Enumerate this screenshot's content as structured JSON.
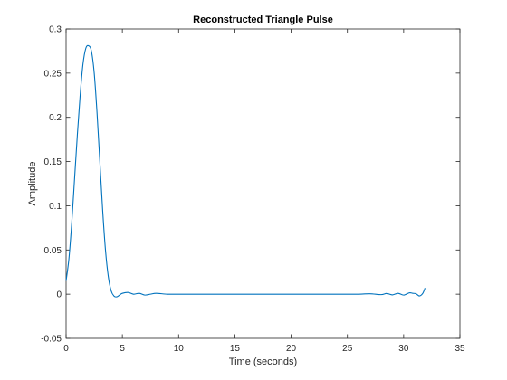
{
  "chart_data": {
    "type": "line",
    "title": "Reconstructed Triangle Pulse",
    "xlabel": "Time (seconds)",
    "ylabel": "Amplitude",
    "xlim": [
      0,
      35
    ],
    "ylim": [
      -0.05,
      0.3
    ],
    "xticks": [
      0,
      5,
      10,
      15,
      20,
      25,
      30,
      35
    ],
    "yticks": [
      -0.05,
      0,
      0.05,
      0.1,
      0.15,
      0.2,
      0.25,
      0.3
    ],
    "xtick_labels": [
      "0",
      "5",
      "10",
      "15",
      "20",
      "25",
      "30",
      "35"
    ],
    "ytick_labels": [
      "-0.05",
      "0",
      "0.05",
      "0.1",
      "0.15",
      "0.2",
      "0.25",
      "0.3"
    ],
    "grid": false,
    "line_color": "#0072BD",
    "series": [
      {
        "x": [
          0,
          0.25,
          0.5,
          0.75,
          1.0,
          1.25,
          1.5,
          1.75,
          2.0,
          2.25,
          2.5,
          2.75,
          3.0,
          3.25,
          3.5,
          3.75,
          4.0,
          4.25,
          4.5,
          4.75,
          5.0,
          5.5,
          6.0,
          6.5,
          7.0,
          7.5,
          8.0,
          9.0,
          10.0,
          11.0,
          12.0,
          14.0,
          16.0,
          18.0,
          20.0,
          22.0,
          24.0,
          26.0,
          27.0,
          28.0,
          28.5,
          29.0,
          29.5,
          30.0,
          30.5,
          30.8,
          31.1,
          31.4,
          31.7,
          31.9
        ],
        "y": [
          0.015,
          0.04,
          0.08,
          0.13,
          0.18,
          0.225,
          0.26,
          0.278,
          0.281,
          0.275,
          0.25,
          0.205,
          0.15,
          0.095,
          0.05,
          0.02,
          0.004,
          -0.002,
          -0.003,
          -0.001,
          0.001,
          0.002,
          0.0,
          0.001,
          -0.001,
          0.0,
          0.001,
          0.0,
          0.0,
          0.0,
          0.0,
          0.0,
          0.0,
          0.0,
          0.0,
          0.0,
          0.0,
          0.0,
          0.0005,
          -0.0005,
          0.0008,
          -0.0008,
          0.001,
          -0.001,
          0.0015,
          0.001,
          0.0005,
          -0.002,
          0.001,
          0.007
        ]
      }
    ]
  }
}
